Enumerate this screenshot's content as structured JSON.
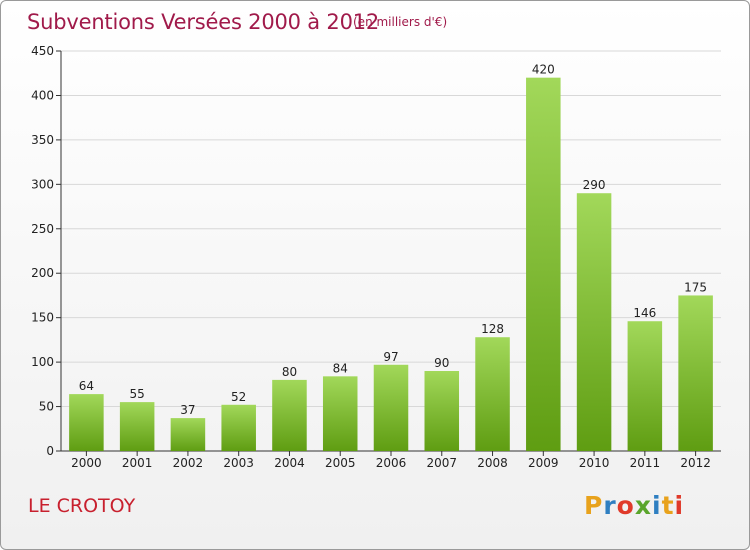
{
  "header": {
    "title": "Subventions Versées 2000 à 2012",
    "unit": "(en milliers d'€)"
  },
  "footer": {
    "commune": "LE CROTOY",
    "logo_letters": [
      "P",
      "r",
      "o",
      "x",
      "i",
      "t",
      "i"
    ],
    "logo_colors": [
      "#e8a21c",
      "#2f7fc1",
      "#e03a2a",
      "#5aa52b",
      "#2f7fc1",
      "#e8a21c",
      "#e03a2a"
    ]
  },
  "colors": {
    "bar_top": "#a2d85a",
    "bar_bottom": "#5f9d12",
    "text": "#222222",
    "grid": "#d8d8d8",
    "title": "#a01a4a",
    "commune": "#c8202e"
  },
  "chart_data": {
    "type": "bar",
    "categories": [
      "2000",
      "2001",
      "2002",
      "2003",
      "2004",
      "2005",
      "2006",
      "2007",
      "2008",
      "2009",
      "2010",
      "2011",
      "2012"
    ],
    "values": [
      64,
      55,
      37,
      52,
      80,
      84,
      97,
      90,
      128,
      420,
      290,
      146,
      175
    ],
    "title": "Subventions Versées 2000 à 2012",
    "subtitle": "(en milliers d'€)",
    "ylim": [
      0,
      450
    ],
    "yticks": [
      0,
      50,
      100,
      150,
      200,
      250,
      300,
      350,
      400,
      450
    ],
    "grid": true,
    "data_labels": true
  }
}
